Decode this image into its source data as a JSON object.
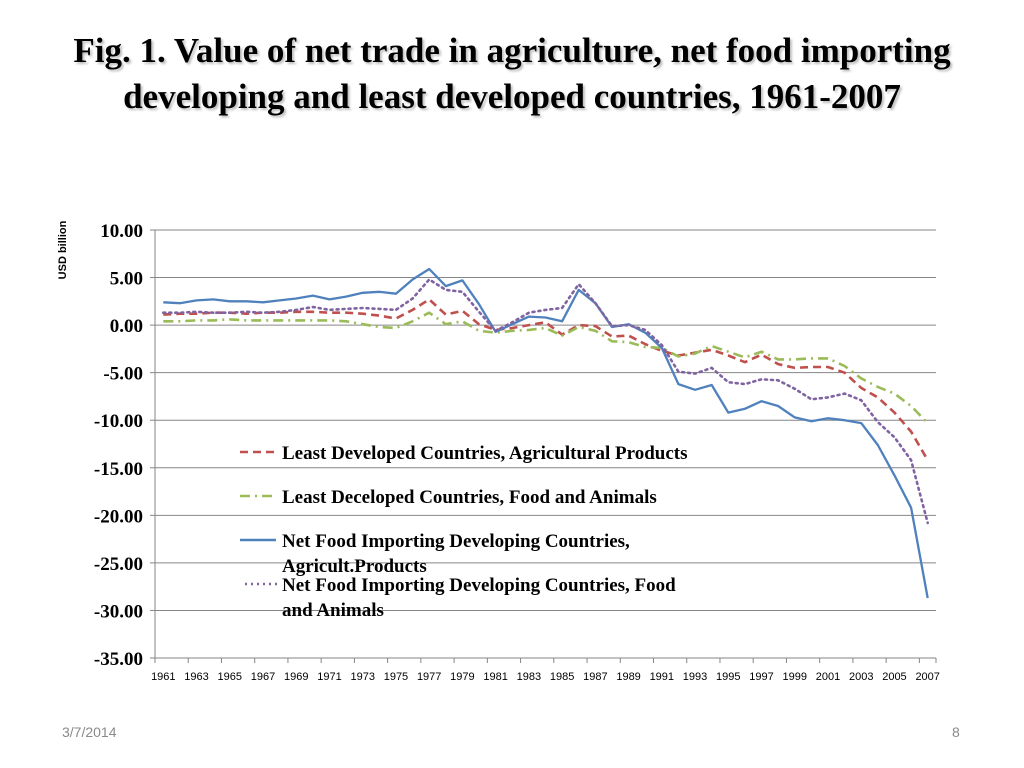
{
  "slide": {
    "title": "Fig. 1. Value of net trade in agriculture, net food importing developing and least developed countries, 1961-2007",
    "date": "3/7/2014",
    "page_number": "8"
  },
  "chart_data": {
    "type": "line",
    "ylabel": "USD billion",
    "xlabel": "",
    "ylim": [
      -35,
      10
    ],
    "y_ticks": [
      "10.00",
      "5.00",
      "0.00",
      "-5.00",
      "-10.00",
      "-15.00",
      "-20.00",
      "-25.00",
      "-30.00",
      "-35.00"
    ],
    "x_tick_labels": [
      "1961",
      "1963",
      "1965",
      "1967",
      "1969",
      "1971",
      "1973",
      "1975",
      "1977",
      "1979",
      "1981",
      "1983",
      "1985",
      "1987",
      "1989",
      "1991",
      "1993",
      "1995",
      "1997",
      "1999",
      "2001",
      "2003",
      "2005",
      "2007"
    ],
    "grid": "horizontal",
    "legend_position": "inside-bottom-center",
    "x": [
      1961,
      1962,
      1963,
      1964,
      1965,
      1966,
      1967,
      1968,
      1969,
      1970,
      1971,
      1972,
      1973,
      1974,
      1975,
      1976,
      1977,
      1978,
      1979,
      1980,
      1981,
      1982,
      1983,
      1984,
      1985,
      1986,
      1987,
      1988,
      1989,
      1990,
      1991,
      1992,
      1993,
      1994,
      1995,
      1996,
      1997,
      1998,
      1999,
      2000,
      2001,
      2002,
      2003,
      2004,
      2005,
      2006,
      2007
    ],
    "series": [
      {
        "name": "Least Developed Countries, Agricultural Products",
        "color": "#c0504d",
        "dash": "dash",
        "values": [
          1.1,
          1.2,
          1.2,
          1.3,
          1.3,
          1.2,
          1.3,
          1.3,
          1.4,
          1.4,
          1.3,
          1.3,
          1.2,
          1.0,
          0.7,
          1.6,
          2.7,
          1.1,
          1.5,
          0.1,
          -0.5,
          -0.3,
          0.0,
          0.3,
          -1.0,
          0.0,
          -0.1,
          -1.2,
          -1.1,
          -2.0,
          -2.7,
          -3.2,
          -2.9,
          -2.6,
          -3.2,
          -3.9,
          -3.1,
          -4.1,
          -4.5,
          -4.4,
          -4.4,
          -5.0,
          -6.6,
          -7.6,
          -9.2,
          -11.2,
          -14.2
        ]
      },
      {
        "name": "Least Deceloped Countries, Food and Animals",
        "color": "#9bbb59",
        "dash": "dashdot",
        "values": [
          0.4,
          0.4,
          0.5,
          0.5,
          0.6,
          0.5,
          0.5,
          0.5,
          0.5,
          0.5,
          0.5,
          0.4,
          0.1,
          -0.2,
          -0.3,
          0.4,
          1.3,
          0.1,
          0.4,
          -0.6,
          -0.8,
          -0.6,
          -0.5,
          -0.3,
          -1.1,
          -0.2,
          -0.6,
          -1.7,
          -1.8,
          -2.3,
          -2.4,
          -3.3,
          -3.0,
          -2.2,
          -2.8,
          -3.4,
          -2.8,
          -3.6,
          -3.6,
          -3.5,
          -3.5,
          -4.3,
          -5.6,
          -6.5,
          -7.2,
          -8.5,
          -10.3
        ]
      },
      {
        "name": "Net Food Importing Developing Countries, Agricult.Products",
        "color": "#4f81bd",
        "dash": "solid",
        "values": [
          2.4,
          2.3,
          2.6,
          2.7,
          2.5,
          2.5,
          2.4,
          2.6,
          2.8,
          3.1,
          2.7,
          3.0,
          3.4,
          3.5,
          3.3,
          4.8,
          5.9,
          4.1,
          4.7,
          2.2,
          -0.7,
          0.1,
          0.9,
          0.8,
          0.4,
          3.7,
          2.3,
          -0.2,
          0.1,
          -0.8,
          -2.4,
          -6.2,
          -6.8,
          -6.3,
          -9.2,
          -8.8,
          -8.0,
          -8.5,
          -9.7,
          -10.1,
          -9.8,
          -10.0,
          -10.3,
          -12.6,
          -15.8,
          -19.2,
          -28.7
        ]
      },
      {
        "name": "Net Food Importing Developing Countries, Food and Animals",
        "color": "#8064a2",
        "dash": "dot",
        "values": [
          1.3,
          1.3,
          1.4,
          1.3,
          1.3,
          1.4,
          1.3,
          1.4,
          1.6,
          1.9,
          1.6,
          1.7,
          1.8,
          1.7,
          1.6,
          2.8,
          4.8,
          3.7,
          3.5,
          1.4,
          -0.6,
          0.3,
          1.3,
          1.6,
          1.8,
          4.3,
          2.3,
          -0.1,
          0.0,
          -0.5,
          -2.1,
          -4.9,
          -5.1,
          -4.5,
          -6.0,
          -6.2,
          -5.7,
          -5.8,
          -6.7,
          -7.8,
          -7.6,
          -7.2,
          -7.9,
          -10.2,
          -11.8,
          -14.2,
          -20.8
        ]
      }
    ]
  }
}
